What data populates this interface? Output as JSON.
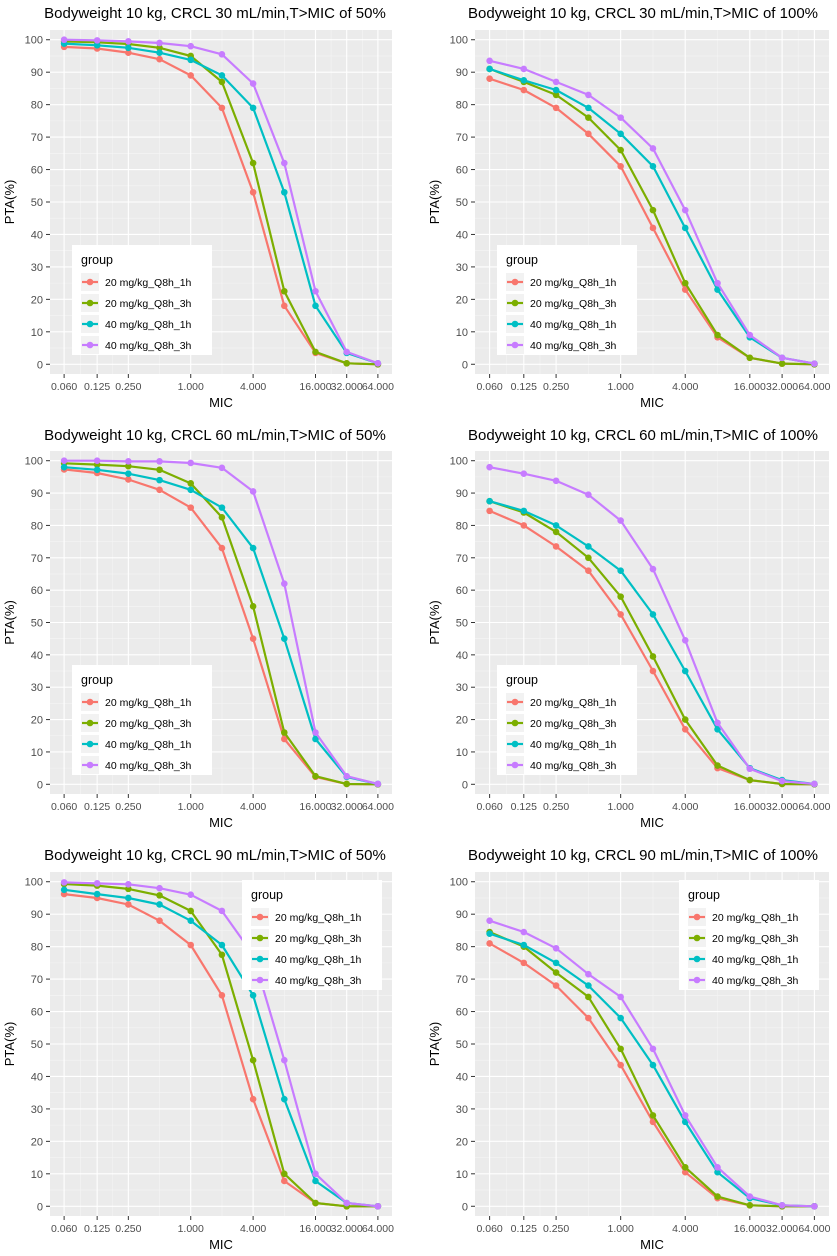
{
  "colors": {
    "panel_bg": "#EBEBEB",
    "grid_major": "#FFFFFF",
    "grid_minor": "#F5F5F5",
    "axis_text": "#4D4D4D",
    "title_text": "#000000",
    "legend_bg": "#FFFFFF"
  },
  "chart_data": [
    {
      "type": "line",
      "title": "Bodyweight 10 kg, CRCL 30 mL/min,T>MIC of 50%",
      "xlabel": "MIC",
      "ylabel": "PTA(%)",
      "x": [
        0.06,
        0.125,
        0.25,
        0.5,
        1,
        2,
        4,
        8,
        16,
        32,
        64
      ],
      "x_ticks": [
        0.06,
        0.125,
        0.25,
        1,
        4,
        16,
        32,
        64
      ],
      "x_tick_labels": [
        "0.060",
        "0.125",
        "0.250",
        "1.000",
        "4.000",
        "16.000",
        "32.000",
        "64.000"
      ],
      "y_ticks": [
        0,
        10,
        20,
        30,
        40,
        50,
        60,
        70,
        80,
        90,
        100
      ],
      "y_tick_labels": [
        "0",
        "10",
        "20",
        "30",
        "40",
        "50",
        "60",
        "70",
        "80",
        "90",
        "100"
      ],
      "ylim": [
        -3,
        103
      ],
      "grid": true,
      "legend_title": "group",
      "legend_position": "bottom-left",
      "series": [
        {
          "name": "20 mg/kg_Q8h_1h",
          "color": "#F8766D",
          "values": [
            97.8,
            97.3,
            96,
            94,
            89,
            79,
            53,
            18,
            3.5,
            0.3,
            0
          ]
        },
        {
          "name": "20 mg/kg_Q8h_3h",
          "color": "#7CAE00",
          "values": [
            99.5,
            99.2,
            98.7,
            97.5,
            95,
            87,
            62,
            22.5,
            3.8,
            0.3,
            0
          ]
        },
        {
          "name": "40 mg/kg_Q8h_1h",
          "color": "#00BFC4",
          "values": [
            98.8,
            98.3,
            97.5,
            96,
            93.8,
            89,
            79,
            53,
            18,
            3.5,
            0.3
          ]
        },
        {
          "name": "40 mg/kg_Q8h_3h",
          "color": "#C77CFF",
          "values": [
            100,
            99.8,
            99.5,
            99,
            98,
            95.5,
            86.5,
            62,
            22.5,
            3.8,
            0.3
          ]
        }
      ]
    },
    {
      "type": "line",
      "title": "Bodyweight 10 kg, CRCL 30 mL/min,T>MIC of 100%",
      "xlabel": "MIC",
      "ylabel": "PTA(%)",
      "x": [
        0.06,
        0.125,
        0.25,
        0.5,
        1,
        2,
        4,
        8,
        16,
        32,
        64
      ],
      "x_ticks": [
        0.06,
        0.125,
        0.25,
        1,
        4,
        16,
        32,
        64
      ],
      "x_tick_labels": [
        "0.060",
        "0.125",
        "0.250",
        "1.000",
        "4.000",
        "16.000",
        "32.000",
        "64.000"
      ],
      "y_ticks": [
        0,
        10,
        20,
        30,
        40,
        50,
        60,
        70,
        80,
        90,
        100
      ],
      "y_tick_labels": [
        "0",
        "10",
        "20",
        "30",
        "40",
        "50",
        "60",
        "70",
        "80",
        "90",
        "100"
      ],
      "ylim": [
        -3,
        103
      ],
      "grid": true,
      "legend_title": "group",
      "legend_position": "bottom-left",
      "series": [
        {
          "name": "20 mg/kg_Q8h_1h",
          "color": "#F8766D",
          "values": [
            88,
            84.5,
            79,
            71,
            61,
            42,
            23,
            8.3,
            2,
            0.2,
            0
          ]
        },
        {
          "name": "20 mg/kg_Q8h_3h",
          "color": "#7CAE00",
          "values": [
            91,
            87,
            83,
            76,
            66,
            47.5,
            25,
            9,
            2,
            0.2,
            0
          ]
        },
        {
          "name": "40 mg/kg_Q8h_1h",
          "color": "#00BFC4",
          "values": [
            91,
            87.5,
            84.5,
            79,
            71,
            61,
            42,
            23,
            8.3,
            2,
            0.2
          ]
        },
        {
          "name": "40 mg/kg_Q8h_3h",
          "color": "#C77CFF",
          "values": [
            93.5,
            91,
            87,
            83,
            76,
            66.5,
            47.5,
            25,
            9,
            2,
            0.2
          ]
        }
      ]
    },
    {
      "type": "line",
      "title": "Bodyweight 10 kg, CRCL 60 mL/min,T>MIC of 50%",
      "xlabel": "MIC",
      "ylabel": "PTA(%)",
      "x": [
        0.06,
        0.125,
        0.25,
        0.5,
        1,
        2,
        4,
        8,
        16,
        32,
        64
      ],
      "x_ticks": [
        0.06,
        0.125,
        0.25,
        1,
        4,
        16,
        32,
        64
      ],
      "x_tick_labels": [
        "0.060",
        "0.125",
        "0.250",
        "1.000",
        "4.000",
        "16.000",
        "32.000",
        "64.000"
      ],
      "y_ticks": [
        0,
        10,
        20,
        30,
        40,
        50,
        60,
        70,
        80,
        90,
        100
      ],
      "y_tick_labels": [
        "0",
        "10",
        "20",
        "30",
        "40",
        "50",
        "60",
        "70",
        "80",
        "90",
        "100"
      ],
      "ylim": [
        -3,
        103
      ],
      "grid": true,
      "legend_title": "group",
      "legend_position": "bottom-left",
      "series": [
        {
          "name": "20 mg/kg_Q8h_1h",
          "color": "#F8766D",
          "values": [
            97.3,
            96.2,
            94.2,
            91,
            85.5,
            73,
            45,
            14,
            2.3,
            0.1,
            0
          ]
        },
        {
          "name": "20 mg/kg_Q8h_3h",
          "color": "#7CAE00",
          "values": [
            99.2,
            98.8,
            98.3,
            97.2,
            93,
            82.5,
            55,
            16,
            2.5,
            0.1,
            0
          ]
        },
        {
          "name": "40 mg/kg_Q8h_1h",
          "color": "#00BFC4",
          "values": [
            98,
            97.2,
            96,
            94,
            91,
            85.5,
            73,
            45,
            14,
            2.3,
            0.1
          ]
        },
        {
          "name": "40 mg/kg_Q8h_3h",
          "color": "#C77CFF",
          "values": [
            100,
            100,
            99.8,
            99.8,
            99.3,
            97.8,
            90.5,
            62,
            16,
            2.5,
            0.1
          ]
        }
      ]
    },
    {
      "type": "line",
      "title": "Bodyweight 10 kg, CRCL 60 mL/min,T>MIC of 100%",
      "xlabel": "MIC",
      "ylabel": "PTA(%)",
      "x": [
        0.06,
        0.125,
        0.25,
        0.5,
        1,
        2,
        4,
        8,
        16,
        32,
        64
      ],
      "x_ticks": [
        0.06,
        0.125,
        0.25,
        1,
        4,
        16,
        32,
        64
      ],
      "x_tick_labels": [
        "0.060",
        "0.125",
        "0.250",
        "1.000",
        "4.000",
        "16.000",
        "32.000",
        "64.000"
      ],
      "y_ticks": [
        0,
        10,
        20,
        30,
        40,
        50,
        60,
        70,
        80,
        90,
        100
      ],
      "y_tick_labels": [
        "0",
        "10",
        "20",
        "30",
        "40",
        "50",
        "60",
        "70",
        "80",
        "90",
        "100"
      ],
      "ylim": [
        -3,
        103
      ],
      "grid": true,
      "legend_title": "group",
      "legend_position": "bottom-left",
      "series": [
        {
          "name": "20 mg/kg_Q8h_1h",
          "color": "#F8766D",
          "values": [
            84.5,
            80,
            73.5,
            66,
            52.5,
            35,
            17,
            5,
            1.3,
            0.1,
            0
          ]
        },
        {
          "name": "20 mg/kg_Q8h_3h",
          "color": "#7CAE00",
          "values": [
            87.5,
            84,
            78,
            70,
            58,
            39.5,
            20,
            5.8,
            1.3,
            0.1,
            0
          ]
        },
        {
          "name": "40 mg/kg_Q8h_1h",
          "color": "#00BFC4",
          "values": [
            87.5,
            84.5,
            80,
            73.5,
            66,
            52.5,
            35,
            17,
            5,
            1.3,
            0.1
          ]
        },
        {
          "name": "40 mg/kg_Q8h_3h",
          "color": "#C77CFF",
          "values": [
            98,
            96,
            93.8,
            89.5,
            81.5,
            66.5,
            44.5,
            19,
            4.8,
            1,
            0.1
          ]
        }
      ]
    },
    {
      "type": "line",
      "title": "Bodyweight 10 kg, CRCL 90 mL/min,T>MIC of 50%",
      "xlabel": "MIC",
      "ylabel": "PTA(%)",
      "x": [
        0.06,
        0.125,
        0.25,
        0.5,
        1,
        2,
        4,
        8,
        16,
        32,
        64
      ],
      "x_ticks": [
        0.06,
        0.125,
        0.25,
        1,
        4,
        16,
        32,
        64
      ],
      "x_tick_labels": [
        "0.060",
        "0.125",
        "0.250",
        "1.000",
        "4.000",
        "16.000",
        "32.000",
        "64.000"
      ],
      "y_ticks": [
        0,
        10,
        20,
        30,
        40,
        50,
        60,
        70,
        80,
        90,
        100
      ],
      "y_tick_labels": [
        "0",
        "10",
        "20",
        "30",
        "40",
        "50",
        "60",
        "70",
        "80",
        "90",
        "100"
      ],
      "ylim": [
        -3,
        103
      ],
      "grid": true,
      "legend_title": "group",
      "legend_position": "top-right",
      "series": [
        {
          "name": "20 mg/kg_Q8h_1h",
          "color": "#F8766D",
          "values": [
            96.2,
            95,
            93,
            88,
            80.5,
            65,
            33,
            7.8,
            1,
            0,
            0
          ]
        },
        {
          "name": "20 mg/kg_Q8h_3h",
          "color": "#7CAE00",
          "values": [
            99.3,
            98.8,
            97.8,
            95.8,
            91,
            77.5,
            45,
            10,
            1,
            0,
            0
          ]
        },
        {
          "name": "40 mg/kg_Q8h_1h",
          "color": "#00BFC4",
          "values": [
            97.5,
            96.2,
            95,
            93,
            88,
            80.5,
            65,
            33,
            7.8,
            1,
            0
          ]
        },
        {
          "name": "40 mg/kg_Q8h_3h",
          "color": "#C77CFF",
          "values": [
            99.8,
            99.5,
            99.2,
            98,
            96,
            91,
            77.5,
            45,
            10,
            1,
            0
          ]
        }
      ]
    },
    {
      "type": "line",
      "title": "Bodyweight 10 kg, CRCL 90 mL/min,T>MIC of 100%",
      "xlabel": "MIC",
      "ylabel": "PTA(%)",
      "x": [
        0.06,
        0.125,
        0.25,
        0.5,
        1,
        2,
        4,
        8,
        16,
        32,
        64
      ],
      "x_ticks": [
        0.06,
        0.125,
        0.25,
        1,
        4,
        16,
        32,
        64
      ],
      "x_tick_labels": [
        "0.060",
        "0.125",
        "0.250",
        "1.000",
        "4.000",
        "16.000",
        "32.000",
        "64.000"
      ],
      "y_ticks": [
        0,
        10,
        20,
        30,
        40,
        50,
        60,
        70,
        80,
        90,
        100
      ],
      "y_tick_labels": [
        "0",
        "10",
        "20",
        "30",
        "40",
        "50",
        "60",
        "70",
        "80",
        "90",
        "100"
      ],
      "ylim": [
        -3,
        103
      ],
      "grid": true,
      "legend_title": "group",
      "legend_position": "top-right",
      "series": [
        {
          "name": "20 mg/kg_Q8h_1h",
          "color": "#F8766D",
          "values": [
            81,
            75,
            68,
            58,
            43.5,
            26,
            10.5,
            2.5,
            0.3,
            0,
            0
          ]
        },
        {
          "name": "20 mg/kg_Q8h_3h",
          "color": "#7CAE00",
          "values": [
            84.5,
            80,
            72,
            64.5,
            48.5,
            28,
            12,
            3,
            0.3,
            0,
            0
          ]
        },
        {
          "name": "40 mg/kg_Q8h_1h",
          "color": "#00BFC4",
          "values": [
            84,
            80.5,
            75,
            68,
            58,
            43.5,
            26,
            10.5,
            2.5,
            0.3,
            0
          ]
        },
        {
          "name": "40 mg/kg_Q8h_3h",
          "color": "#C77CFF",
          "values": [
            88,
            84.5,
            79.5,
            71.5,
            64.5,
            48.5,
            28,
            12,
            3,
            0.3,
            0
          ]
        }
      ]
    }
  ]
}
